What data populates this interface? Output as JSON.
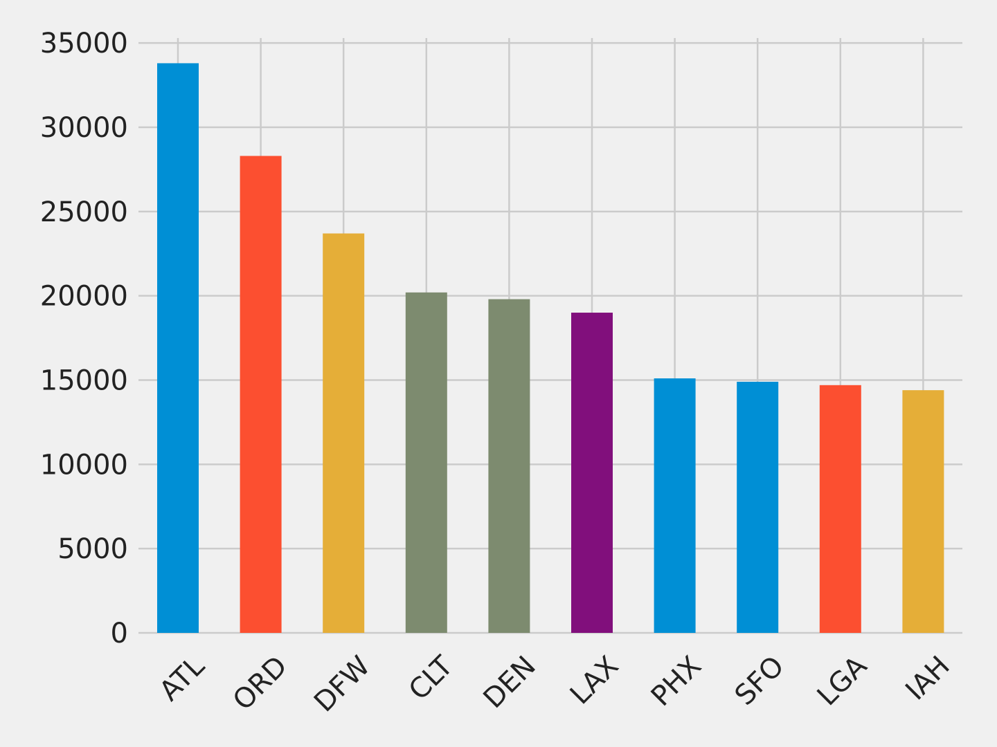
{
  "chart_data": {
    "type": "bar",
    "title": "",
    "xlabel": "",
    "ylabel": "",
    "categories": [
      "ATL",
      "ORD",
      "DFW",
      "CLT",
      "DEN",
      "LAX",
      "PHX",
      "SFO",
      "LGA",
      "IAH"
    ],
    "values": [
      33800,
      28300,
      23700,
      20200,
      19800,
      19000,
      15100,
      14900,
      14700,
      14400
    ],
    "bar_colors": [
      "#008fd5",
      "#fc4f30",
      "#e5ae38",
      "#7d8b6f",
      "#7d8b6f",
      "#810f7c",
      "#008fd5",
      "#008fd5",
      "#fc4f30",
      "#e5ae38"
    ],
    "ylim": [
      0,
      35500
    ],
    "yticks": [
      0,
      5000,
      10000,
      15000,
      20000,
      25000,
      30000,
      35000
    ],
    "ytick_labels": [
      "0",
      "5000",
      "10000",
      "15000",
      "20000",
      "25000",
      "30000",
      "35000"
    ],
    "xtick_rotation_deg": 45,
    "grid": true,
    "legend": "none",
    "background_color": "#f0f0f0",
    "grid_color": "#cbcbcb"
  }
}
